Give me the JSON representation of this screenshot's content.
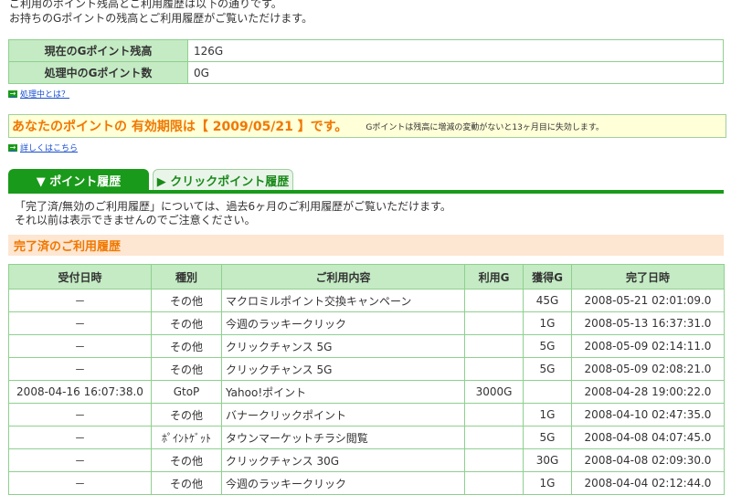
{
  "intro": [
    "ご利用のポイント残高とご利用履歴は以下の通りです。",
    "お持ちのGポイントの残高とご利用履歴がご覧いただけます。"
  ],
  "balance": [
    {
      "label": "現在のGポイント残高",
      "value": "126G"
    },
    {
      "label": "処理中のGポイント数",
      "value": "0G"
    }
  ],
  "processing_link": "処理中とは？",
  "expiry": {
    "main": "あなたのポイントの 有効期限は【 2009/05/21 】です。",
    "note": "Gポイントは残高に増減の変動がないと13ヶ月目に失効します。"
  },
  "details_link": "詳しくはこちら",
  "tabs": [
    "▼ ポイント履歴",
    "▶ クリックポイント履歴"
  ],
  "notice": [
    "「完了済/無効のご利用履歴」については、過去6ヶ月のご利用履歴がご覧いただけます。",
    "それ以前は表示できませんのでご注意ください。"
  ],
  "section_title": "完了済のご利用履歴",
  "columns": [
    "受付日時",
    "種別",
    "ご利用内容",
    "利用G",
    "獲得G",
    "完了日時"
  ],
  "rows": [
    [
      "－",
      "その他",
      "マクロミルポイント交換キャンペーン",
      "",
      "45G",
      "2008-05-21 02:01:09.0"
    ],
    [
      "－",
      "その他",
      "今週のラッキークリック",
      "",
      "1G",
      "2008-05-13 16:37:31.0"
    ],
    [
      "－",
      "その他",
      "クリックチャンス 5G",
      "",
      "5G",
      "2008-05-09 02:14:11.0"
    ],
    [
      "－",
      "その他",
      "クリックチャンス 5G",
      "",
      "5G",
      "2008-05-09 02:08:21.0"
    ],
    [
      "2008-04-16 16:07:38.0",
      "GtoP",
      "Yahoo!ポイント",
      "3000G",
      "",
      "2008-04-28 19:00:22.0"
    ],
    [
      "－",
      "その他",
      "バナークリックポイント",
      "",
      "1G",
      "2008-04-10 02:47:35.0"
    ],
    [
      "－",
      "ﾎﾟｲﾝﾄｹﾞｯﾄ",
      "タウンマーケットチラシ閲覧",
      "",
      "5G",
      "2008-04-08 04:07:45.0"
    ],
    [
      "－",
      "その他",
      "クリックチャンス 30G",
      "",
      "30G",
      "2008-04-08 02:09:30.0"
    ],
    [
      "－",
      "その他",
      "今週のラッキークリック",
      "",
      "1G",
      "2008-04-04 02:12:44.0"
    ]
  ]
}
